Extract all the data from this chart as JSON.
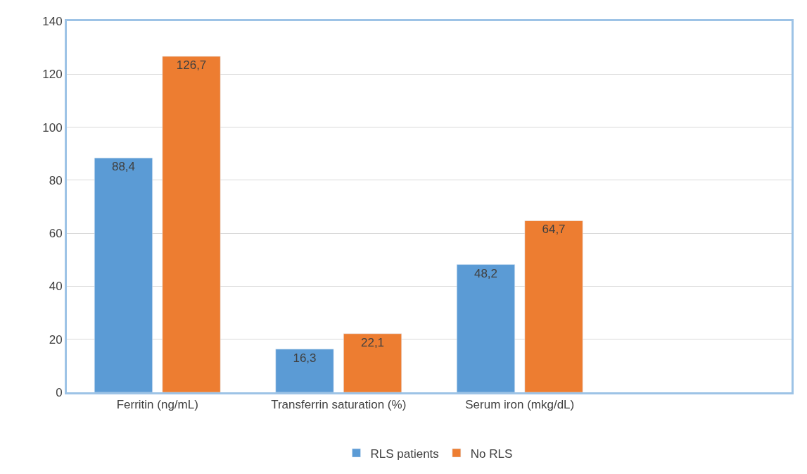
{
  "chart_data": {
    "type": "bar",
    "categories": [
      "Ferritin (ng/mL)",
      "Transferrin saturation (%)",
      "Serum iron (mkg/dL)",
      null
    ],
    "series": [
      {
        "name": "RLS patients",
        "color": "#5b9bd5",
        "values": [
          88.4,
          16.3,
          48.2,
          null
        ],
        "value_labels": [
          "88,4",
          "16,3",
          "48,2",
          null
        ]
      },
      {
        "name": "No RLS",
        "color": "#ed7d31",
        "values": [
          126.7,
          22.1,
          64.7,
          null
        ],
        "value_labels": [
          "126,7",
          "22,1",
          "64,7",
          null
        ]
      }
    ],
    "ylim": [
      0,
      140
    ],
    "yticks": [
      0,
      20,
      40,
      60,
      80,
      100,
      120,
      140
    ],
    "grid": "y",
    "legend": "bottom"
  }
}
